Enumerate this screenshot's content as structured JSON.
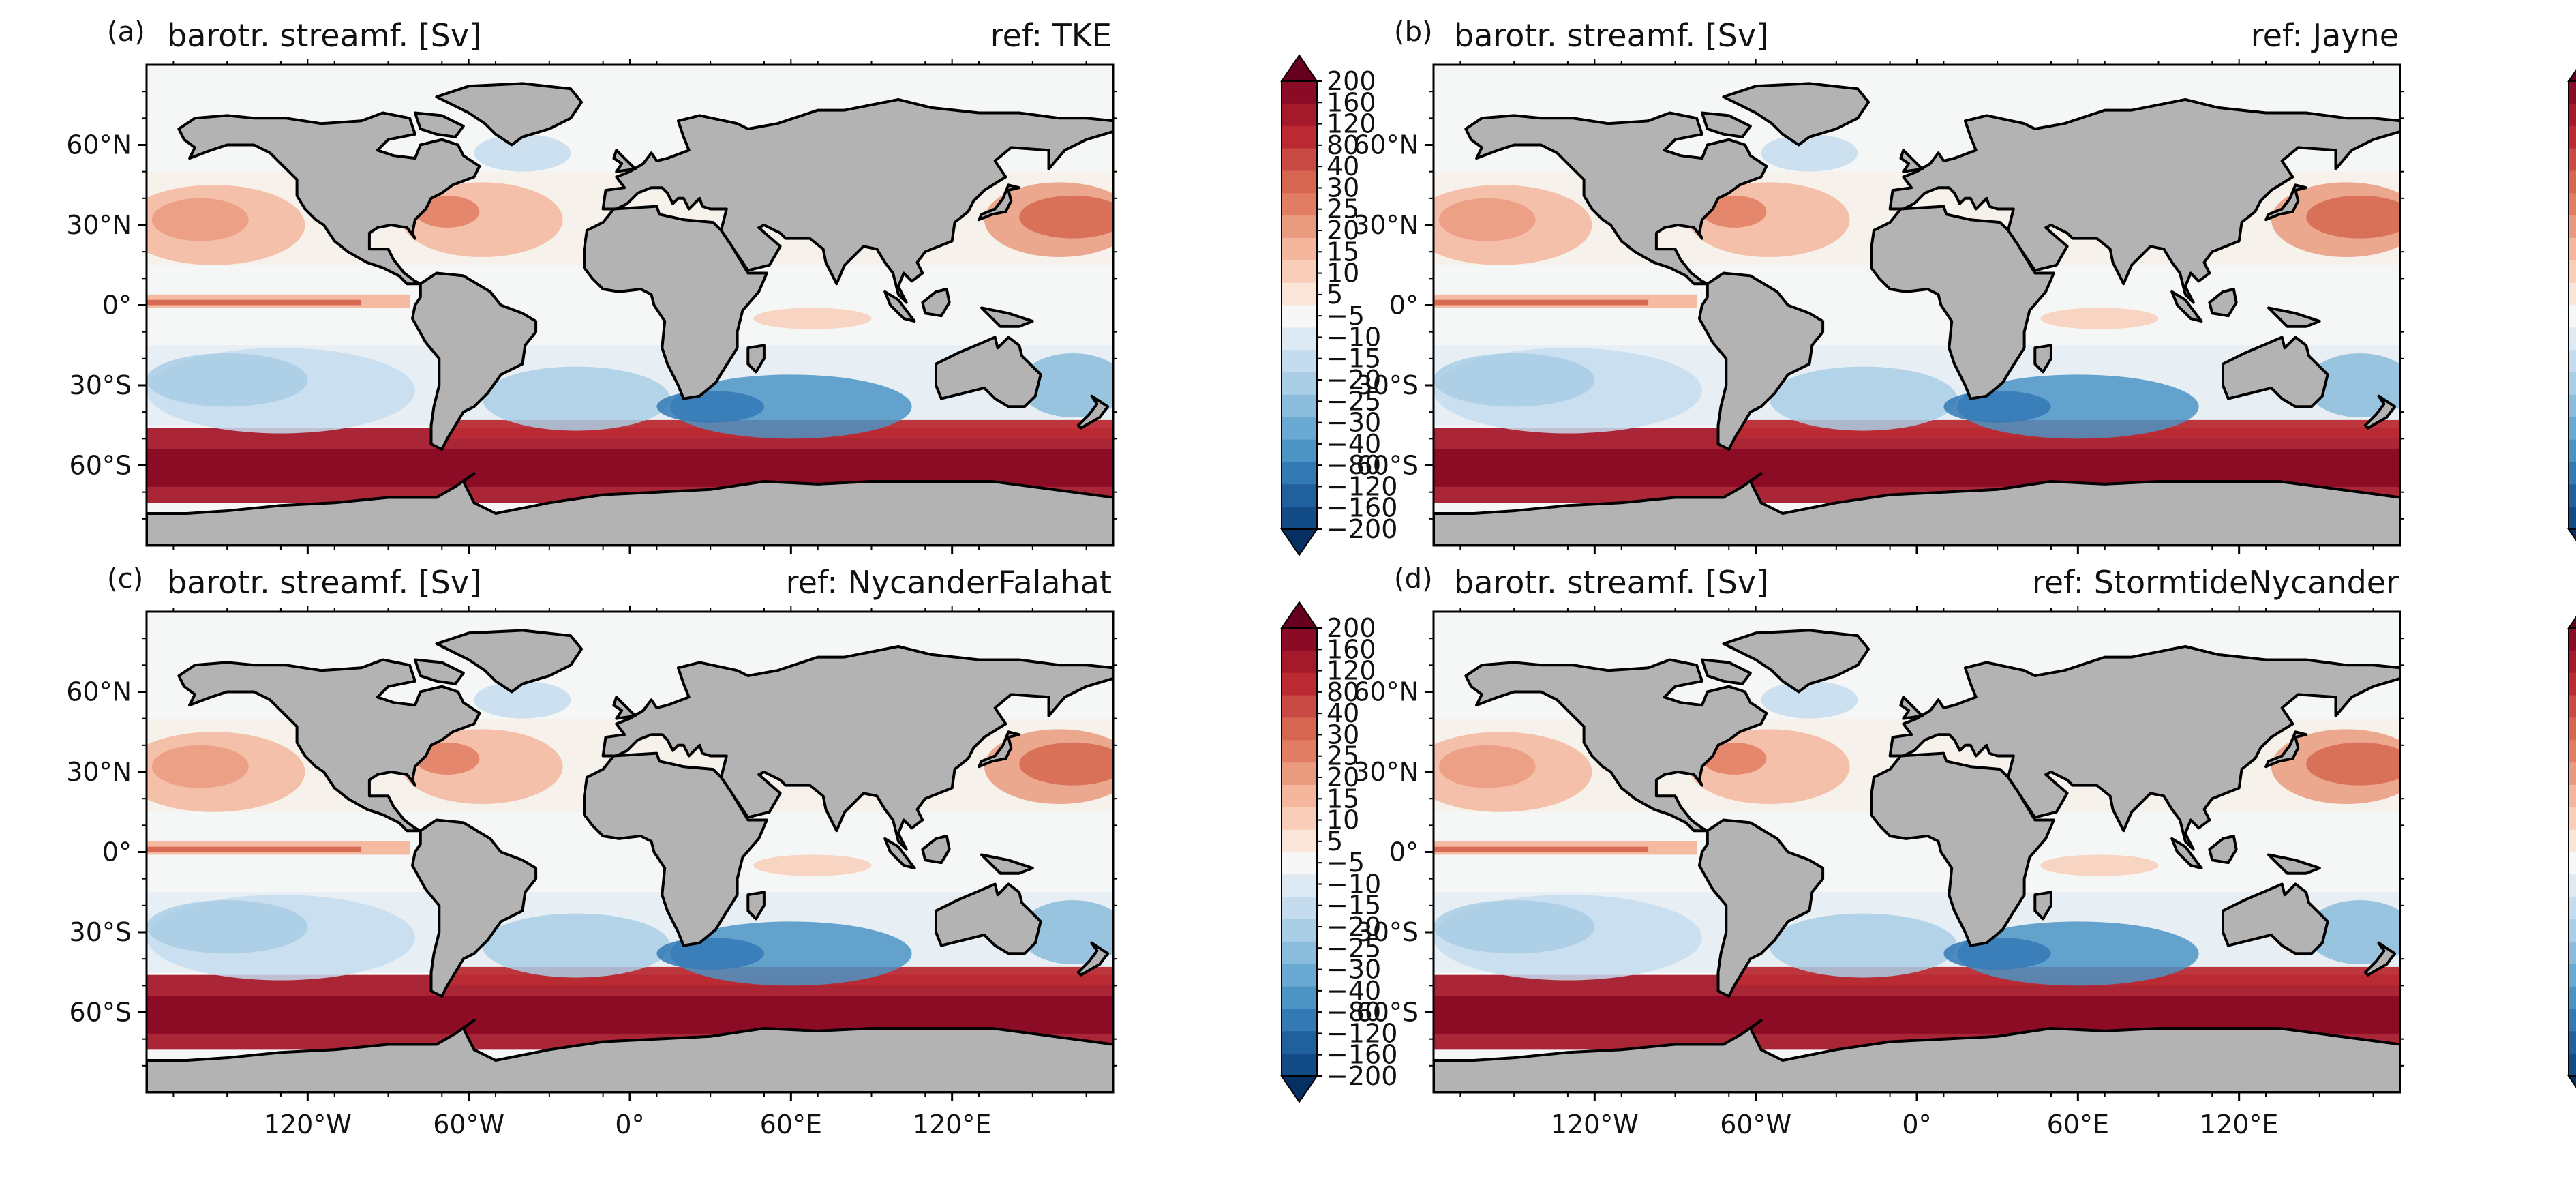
{
  "figure": {
    "panels": [
      {
        "letter": "(a)",
        "title": "barotr. streamf. [Sv]",
        "ref": "ref: TKE"
      },
      {
        "letter": "(b)",
        "title": "barotr. streamf. [Sv]",
        "ref": "ref: Jayne"
      },
      {
        "letter": "(c)",
        "title": "barotr. streamf. [Sv]",
        "ref": "ref: NycanderFalahat"
      },
      {
        "letter": "(d)",
        "title": "barotr. streamf. [Sv]",
        "ref": "ref: StormtideNycander"
      }
    ],
    "lat_ticks": [
      "60°N",
      "30°N",
      "0°",
      "30°S",
      "60°S"
    ],
    "lat_values": [
      60,
      30,
      0,
      -30,
      -60
    ],
    "lon_ticks": [
      "120°W",
      "60°W",
      "0°",
      "60°E",
      "120°E"
    ],
    "lon_values": [
      -120,
      -60,
      0,
      60,
      120
    ],
    "lat_range": [
      -90,
      90
    ],
    "lon_range": [
      -180,
      180
    ],
    "colorbar": {
      "levels": [
        "200",
        "160",
        "120",
        "80",
        "40",
        "30",
        "25",
        "20",
        "15",
        "10",
        "5",
        "−5",
        "−10",
        "−15",
        "−20",
        "−25",
        "−30",
        "−40",
        "−80",
        "−120",
        "−160",
        "−200"
      ],
      "colors": [
        "#67001f",
        "#8a0b25",
        "#a51a2b",
        "#bb2a33",
        "#c94a45",
        "#d6664f",
        "#e07d62",
        "#ea9a7f",
        "#f4b79d",
        "#f8ceb8",
        "#fbe4d8",
        "#f7f7f7",
        "#dde9f3",
        "#c4dced",
        "#a9cee5",
        "#8bbcdb",
        "#6aaad2",
        "#4b94c4",
        "#3279b6",
        "#20609f",
        "#124b86",
        "#053061"
      ],
      "extend": "both"
    },
    "land_color": "#b3b3b3",
    "ocean_color": "#f5f7f7"
  }
}
